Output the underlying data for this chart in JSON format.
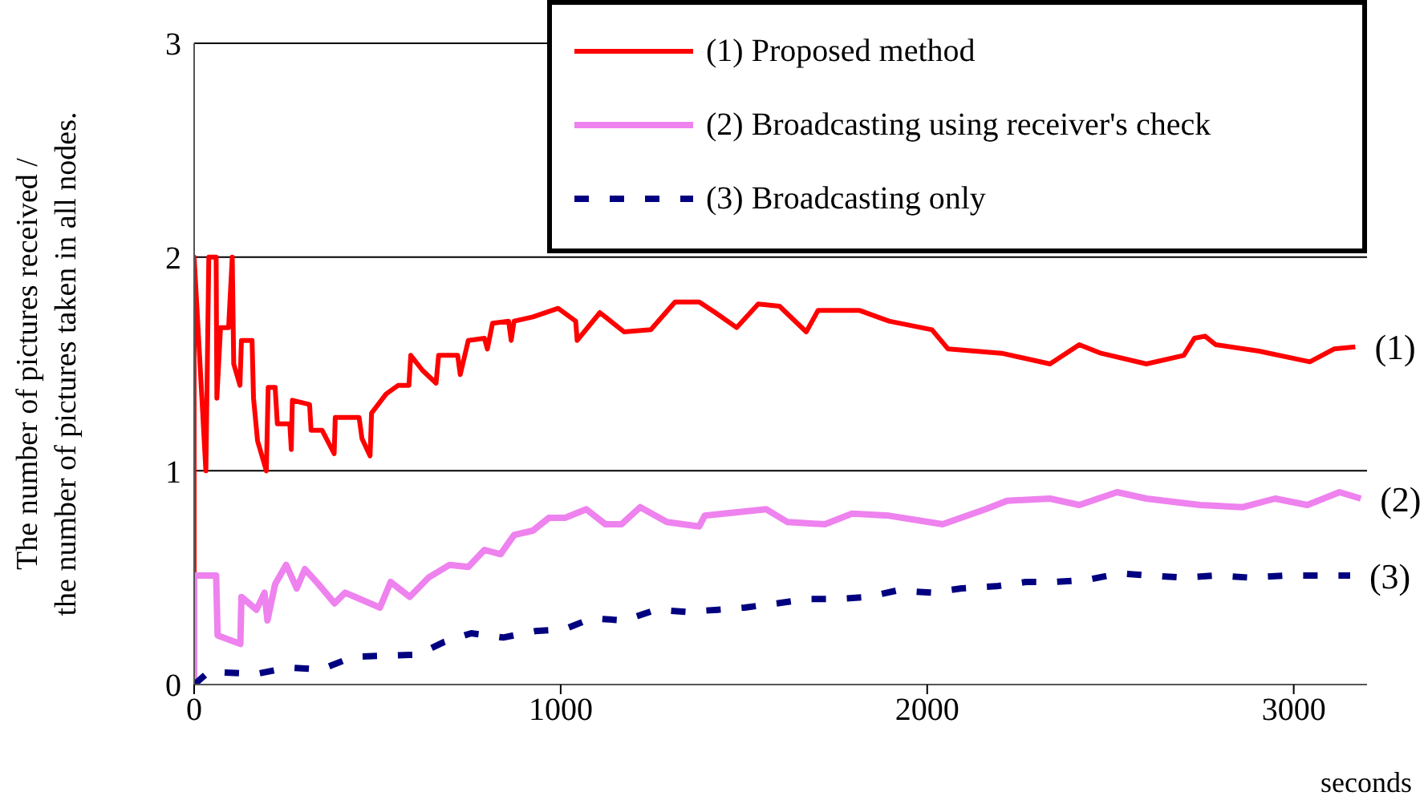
{
  "chart_data": {
    "type": "line",
    "xlabel": "seconds",
    "ylabel": "The number of pictures received /\nthe number of pictures taken in all nodes.",
    "xlim": [
      0,
      3200
    ],
    "xticks": [
      0,
      1000,
      2000,
      3000
    ],
    "ylim": [
      0,
      3
    ],
    "yticks": [
      0,
      1,
      2,
      3
    ],
    "grid": "y",
    "legend": "top right",
    "marker": "none",
    "series": [
      {
        "name": "(1) Proposed method",
        "color": "#ff0000",
        "line_style": "solid",
        "x": [
          0,
          0,
          32,
          40,
          60,
          62,
          72,
          94,
          104,
          108,
          125,
          129,
          158,
          162,
          173,
          197,
          202,
          221,
          227,
          261,
          265,
          268,
          315,
          319,
          349,
          382,
          385,
          450,
          458,
          480,
          484,
          524,
          557,
          586,
          591,
          623,
          660,
          667,
          719,
          726,
          748,
          792,
          800,
          814,
          858,
          865,
          873,
          924,
          993,
          1041,
          1045,
          1107,
          1173,
          1246,
          1312,
          1378,
          1422,
          1480,
          1539,
          1597,
          1670,
          1702,
          1816,
          1896,
          2013,
          2057,
          2203,
          2335,
          2415,
          2474,
          2598,
          2700,
          2729,
          2758,
          2787,
          2905,
          3044,
          3110,
          3168
        ],
        "values": [
          0.52,
          2.0,
          1.0,
          2.0,
          2.0,
          1.34,
          1.67,
          1.67,
          2.0,
          1.5,
          1.4,
          1.61,
          1.61,
          1.34,
          1.14,
          1.0,
          1.39,
          1.39,
          1.22,
          1.22,
          1.1,
          1.33,
          1.31,
          1.19,
          1.19,
          1.08,
          1.25,
          1.25,
          1.15,
          1.07,
          1.27,
          1.36,
          1.4,
          1.4,
          1.54,
          1.47,
          1.41,
          1.54,
          1.54,
          1.45,
          1.61,
          1.62,
          1.57,
          1.69,
          1.7,
          1.61,
          1.7,
          1.72,
          1.76,
          1.7,
          1.61,
          1.74,
          1.65,
          1.66,
          1.79,
          1.79,
          1.74,
          1.67,
          1.78,
          1.77,
          1.65,
          1.75,
          1.75,
          1.7,
          1.66,
          1.57,
          1.55,
          1.5,
          1.59,
          1.55,
          1.5,
          1.54,
          1.62,
          1.63,
          1.59,
          1.56,
          1.51,
          1.57,
          1.58
        ]
      },
      {
        "name": "(2) Broadcasting using receiver's check",
        "color": "#ee82ee",
        "line_style": "solid",
        "x": [
          0,
          0,
          60,
          64,
          126,
          129,
          170,
          192,
          200,
          221,
          251,
          280,
          302,
          339,
          383,
          412,
          507,
          536,
          588,
          639,
          697,
          748,
          792,
          836,
          873,
          924,
          968,
          1012,
          1070,
          1122,
          1166,
          1217,
          1290,
          1378,
          1393,
          1561,
          1619,
          1721,
          1795,
          1896,
          2042,
          2159,
          2218,
          2335,
          2415,
          2518,
          2598,
          2744,
          2861,
          2949,
          3037,
          3125,
          3183
        ],
        "values": [
          0,
          0.51,
          0.51,
          0.23,
          0.19,
          0.41,
          0.35,
          0.43,
          0.3,
          0.47,
          0.56,
          0.45,
          0.54,
          0.47,
          0.38,
          0.43,
          0.36,
          0.48,
          0.41,
          0.5,
          0.56,
          0.55,
          0.63,
          0.61,
          0.7,
          0.72,
          0.78,
          0.78,
          0.82,
          0.75,
          0.75,
          0.83,
          0.76,
          0.74,
          0.79,
          0.82,
          0.76,
          0.75,
          0.8,
          0.79,
          0.75,
          0.82,
          0.86,
          0.87,
          0.84,
          0.9,
          0.87,
          0.84,
          0.83,
          0.87,
          0.84,
          0.9,
          0.87
        ]
      },
      {
        "name": "(3) Broadcasting only",
        "color": "#000080",
        "line_style": "dashed",
        "x": [
          0,
          40,
          170,
          258,
          346,
          434,
          610,
          683,
          756,
          843,
          931,
          1012,
          1085,
          1173,
          1261,
          1341,
          1429,
          1502,
          1590,
          1677,
          1750,
          1838,
          1918,
          2013,
          2094,
          2189,
          2269,
          2350,
          2437,
          2525,
          2612,
          2700,
          2788,
          2883,
          2978,
          3066,
          3154
        ],
        "values": [
          0,
          0.06,
          0.05,
          0.08,
          0.07,
          0.13,
          0.14,
          0.2,
          0.24,
          0.22,
          0.25,
          0.26,
          0.31,
          0.3,
          0.35,
          0.34,
          0.35,
          0.36,
          0.38,
          0.4,
          0.4,
          0.41,
          0.44,
          0.43,
          0.45,
          0.46,
          0.48,
          0.48,
          0.49,
          0.52,
          0.51,
          0.5,
          0.51,
          0.5,
          0.51,
          0.51,
          0.51
        ]
      }
    ],
    "annotations": [
      {
        "text": "(1)",
        "x": 3168,
        "y": 1.58
      },
      {
        "text": "(2)",
        "x": 3183,
        "y": 0.87
      },
      {
        "text": "(3)",
        "x": 3154,
        "y": 0.51
      }
    ]
  }
}
